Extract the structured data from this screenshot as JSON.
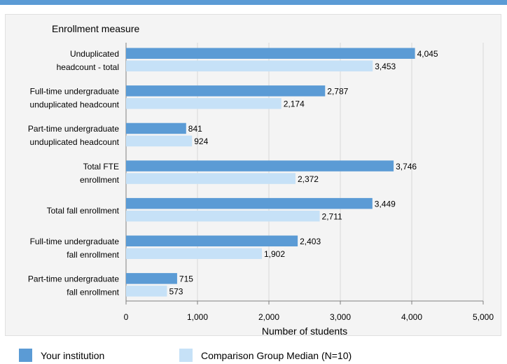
{
  "chart_data": {
    "type": "bar",
    "orientation": "horizontal",
    "y_axis_title": "Enrollment measure",
    "xlabel": "Number of students",
    "xlim": [
      0,
      5000
    ],
    "xticks": [
      0,
      1000,
      2000,
      3000,
      4000,
      5000
    ],
    "xtick_labels": [
      "0",
      "1,000",
      "2,000",
      "3,000",
      "4,000",
      "5,000"
    ],
    "categories": [
      [
        "Unduplicated",
        "headcount - total"
      ],
      [
        "Full-time undergraduate",
        "unduplicated headcount"
      ],
      [
        "Part-time undergraduate",
        "unduplicated headcount"
      ],
      [
        "Total FTE",
        "enrollment"
      ],
      [
        "Total fall enrollment"
      ],
      [
        "Full-time undergraduate",
        "fall enrollment"
      ],
      [
        "Part-time undergraduate",
        "fall enrollment"
      ]
    ],
    "series": [
      {
        "name": "Your institution",
        "color": "#5b9bd5",
        "values": [
          4045,
          2787,
          841,
          3746,
          3449,
          2403,
          715
        ],
        "labels": [
          "4,045",
          "2,787",
          "841",
          "3,746",
          "3,449",
          "2,403",
          "715"
        ]
      },
      {
        "name": "Comparison Group Median (N=10)",
        "color": "#c6e1f7",
        "values": [
          3453,
          2174,
          924,
          2372,
          2711,
          1902,
          573
        ],
        "labels": [
          "3,453",
          "2,174",
          "924",
          "2,372",
          "2,711",
          "1,902",
          "573"
        ]
      }
    ],
    "grid": true,
    "legend_position": "bottom-left"
  }
}
